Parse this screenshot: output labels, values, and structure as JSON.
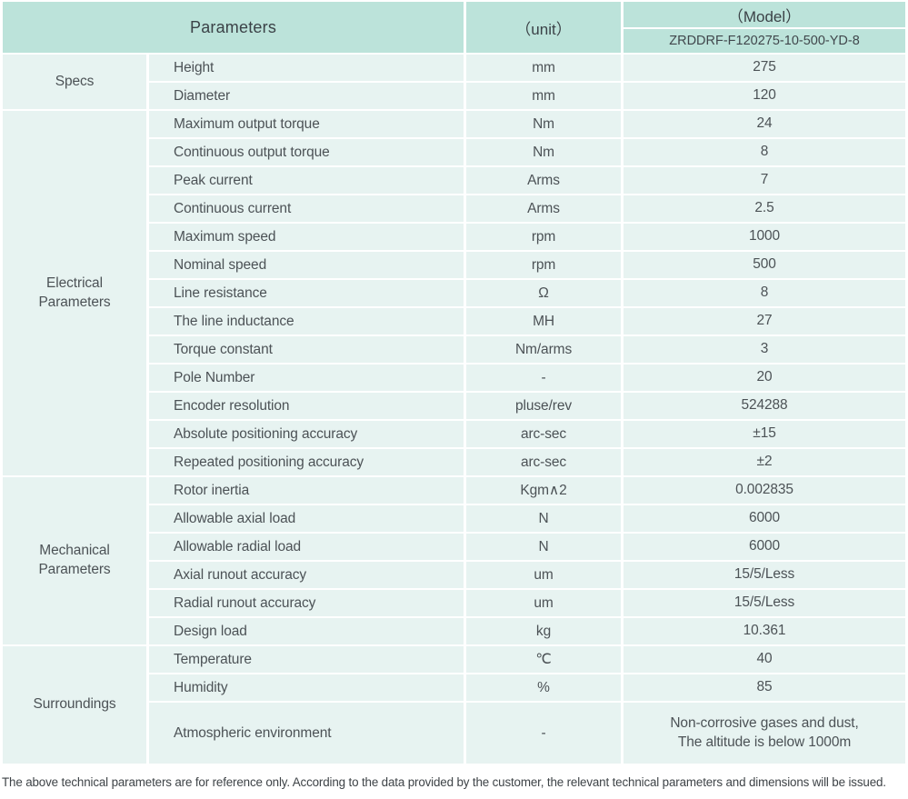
{
  "header": {
    "parameters": "Parameters",
    "unit": "（unit）",
    "model": "（Model）",
    "model_value": "ZRDDRF-F120275-10-500-YD-8"
  },
  "sections": [
    {
      "category": "Specs",
      "rows": [
        {
          "name": "Height",
          "unit": "mm",
          "value": "275"
        },
        {
          "name": "Diameter",
          "unit": "mm",
          "value": "120"
        }
      ]
    },
    {
      "category": "Electrical\nParameters",
      "rows": [
        {
          "name": "Maximum output torque",
          "unit": "Nm",
          "value": "24"
        },
        {
          "name": "Continuous output torque",
          "unit": "Nm",
          "value": "8"
        },
        {
          "name": "Peak current",
          "unit": "Arms",
          "value": "7"
        },
        {
          "name": "Continuous current",
          "unit": "Arms",
          "value": "2.5"
        },
        {
          "name": "Maximum speed",
          "unit": "rpm",
          "value": "1000"
        },
        {
          "name": "Nominal speed",
          "unit": "rpm",
          "value": "500"
        },
        {
          "name": "Line resistance",
          "unit": "Ω",
          "value": "8"
        },
        {
          "name": "The line inductance",
          "unit": "MH",
          "value": "27"
        },
        {
          "name": "Torque constant",
          "unit": "Nm/arms",
          "value": "3"
        },
        {
          "name": "Pole Number",
          "unit": "-",
          "value": "20"
        },
        {
          "name": "Encoder resolution",
          "unit": "pluse/rev",
          "value": "524288"
        },
        {
          "name": "Absolute positioning accuracy",
          "unit": "arc-sec",
          "value": "±15"
        },
        {
          "name": "Repeated positioning accuracy",
          "unit": "arc-sec",
          "value": "±2"
        }
      ]
    },
    {
      "category": "Mechanical\nParameters",
      "rows": [
        {
          "name": "Rotor inertia",
          "unit": "Kgm∧2",
          "value": "0.002835"
        },
        {
          "name": "Allowable axial load",
          "unit": "N",
          "value": "6000"
        },
        {
          "name": "Allowable radial load",
          "unit": "N",
          "value": "6000"
        },
        {
          "name": "Axial runout accuracy",
          "unit": "um",
          "value": "15/5/Less"
        },
        {
          "name": "Radial runout accuracy",
          "unit": "um",
          "value": "15/5/Less"
        },
        {
          "name": "Design load",
          "unit": "kg",
          "value": "10.361"
        }
      ]
    },
    {
      "category": "Surroundings",
      "rows": [
        {
          "name": "Temperature",
          "unit": "℃",
          "value": "40"
        },
        {
          "name": "Humidity",
          "unit": "%",
          "value": "85"
        },
        {
          "name": "Atmospheric environment",
          "unit": "-",
          "value": "Non-corrosive gases and dust,\nThe altitude is below 1000m"
        }
      ]
    }
  ],
  "footer": {
    "note": "The above technical parameters are for reference only. According to the data provided by the customer, the relevant technical parameters and dimensions will be issued."
  },
  "colors": {
    "header_bg": "#bce3da",
    "row_bg": "#e7f3f1"
  }
}
